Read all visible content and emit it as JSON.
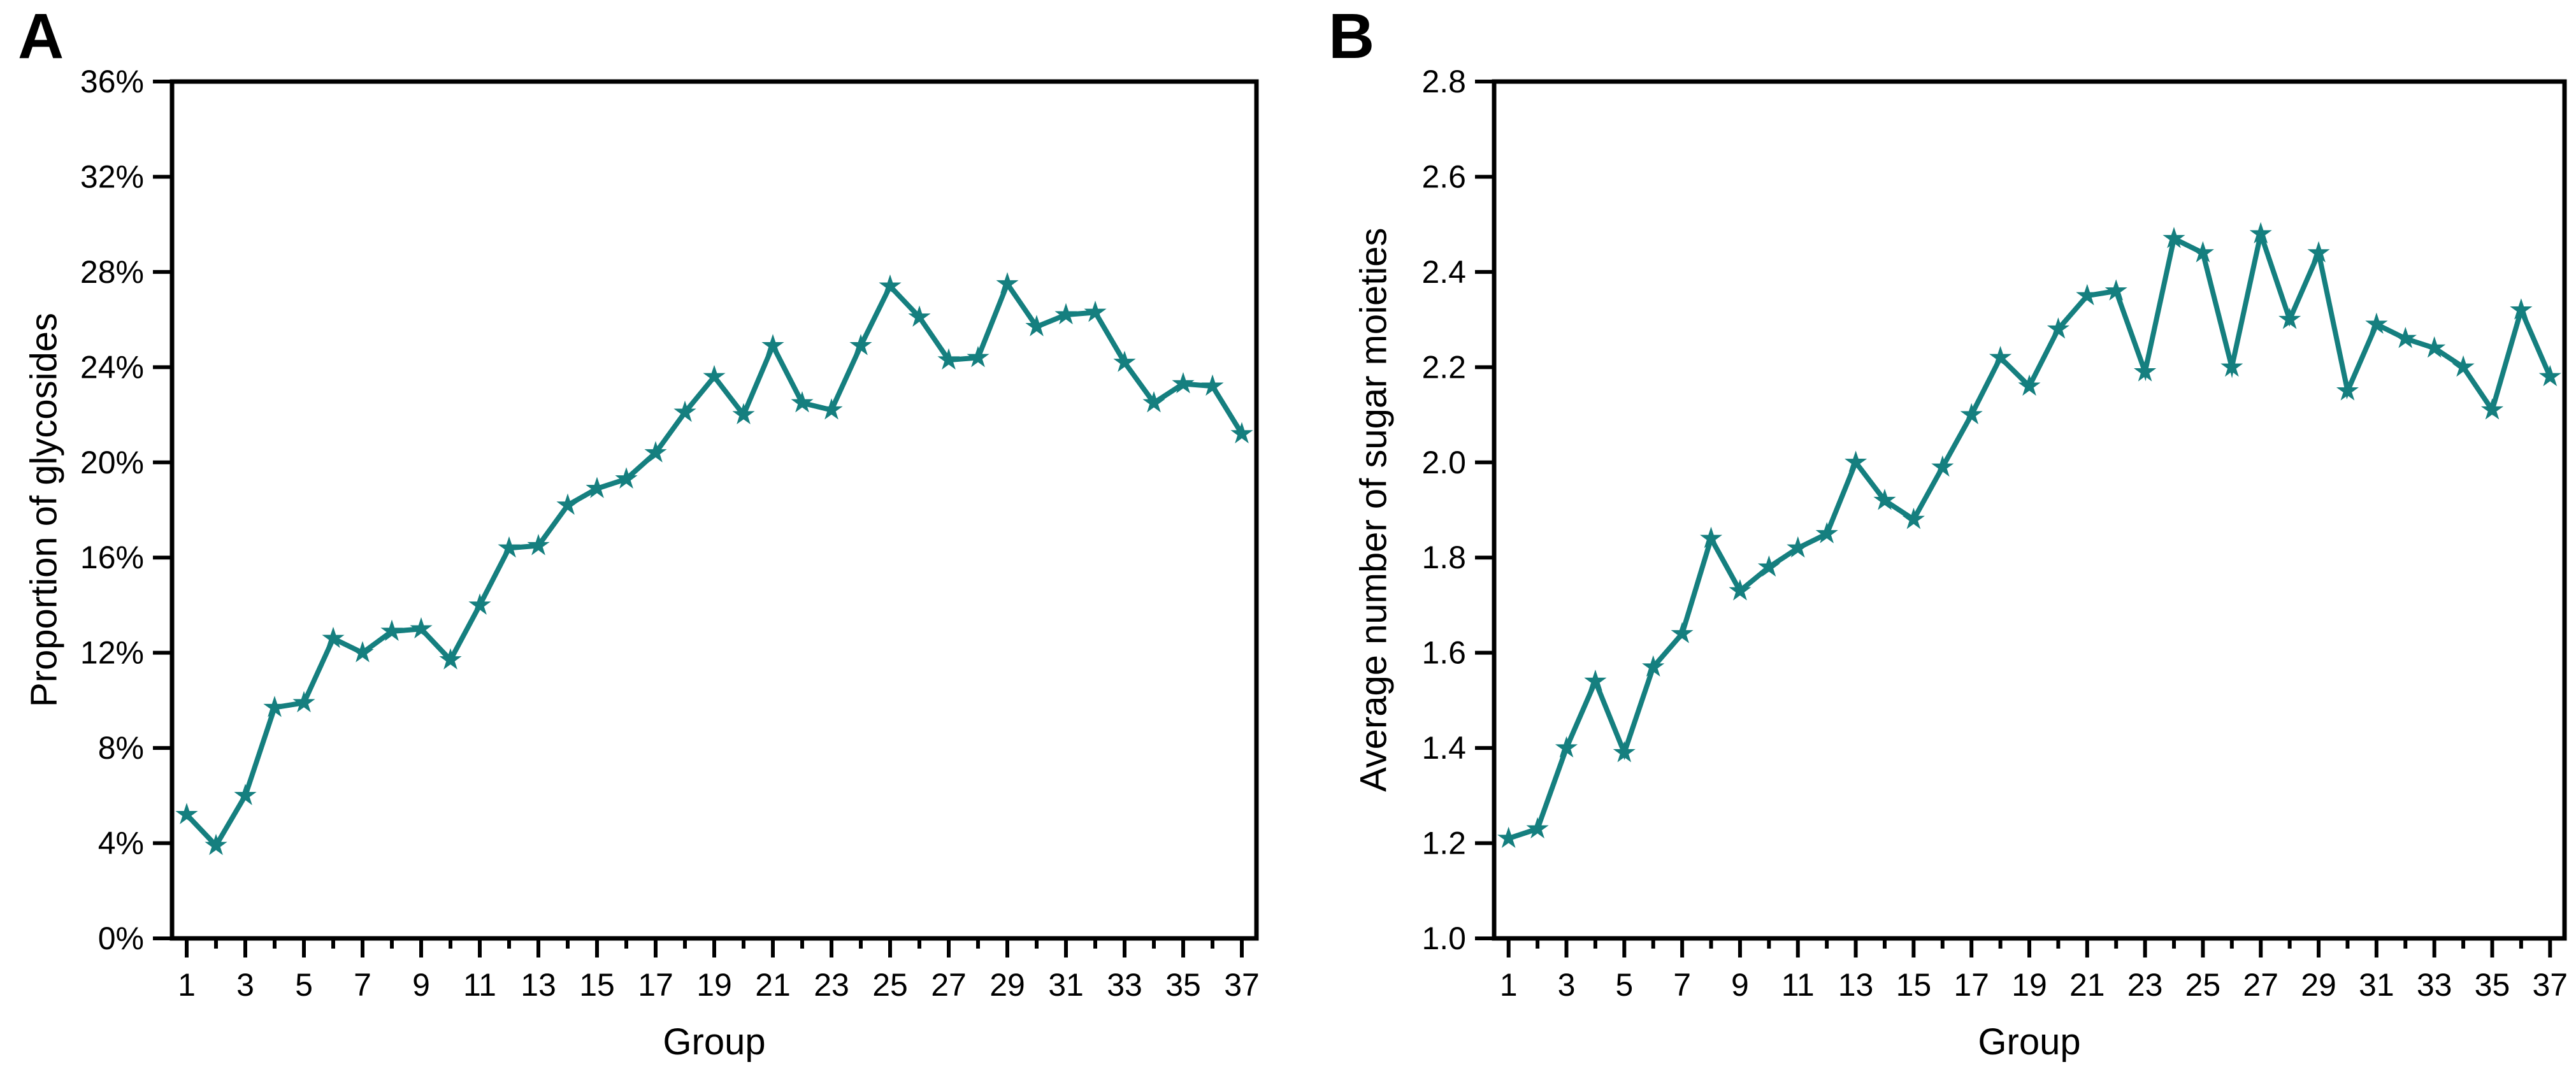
{
  "figure": {
    "background": "#ffffff",
    "axis_color": "#000000"
  },
  "chart_data": [
    {
      "type": "line",
      "panel_label": "A",
      "title": "",
      "xlabel": "Group",
      "ylabel": "Proportion of glycosides",
      "series_color": "#157f7f",
      "marker": "star",
      "grid": false,
      "legend": "none",
      "xlim": [
        0.5,
        37.5
      ],
      "ylim": [
        0,
        36
      ],
      "y_ticks": [
        0,
        4,
        8,
        12,
        16,
        20,
        24,
        28,
        32,
        36
      ],
      "y_tick_labels": [
        "0%",
        "4%",
        "8%",
        "12%",
        "16%",
        "20%",
        "24%",
        "28%",
        "32%",
        "36%"
      ],
      "x_major_ticks": [
        1,
        3,
        5,
        7,
        9,
        11,
        13,
        15,
        17,
        19,
        21,
        23,
        25,
        27,
        29,
        31,
        33,
        35,
        37
      ],
      "x_tick_labels": [
        "1",
        "3",
        "5",
        "7",
        "9",
        "11",
        "13",
        "15",
        "17",
        "19",
        "21",
        "23",
        "25",
        "27",
        "29",
        "31",
        "33",
        "35",
        "37"
      ],
      "x_minor_ticks": [
        2,
        4,
        6,
        8,
        10,
        12,
        14,
        16,
        18,
        20,
        22,
        24,
        26,
        28,
        30,
        32,
        34,
        36
      ],
      "x": [
        1,
        2,
        3,
        4,
        5,
        6,
        7,
        8,
        9,
        10,
        11,
        12,
        13,
        14,
        15,
        16,
        17,
        18,
        19,
        20,
        21,
        22,
        23,
        24,
        25,
        26,
        27,
        28,
        29,
        30,
        31,
        32,
        33,
        34,
        35,
        36,
        37
      ],
      "values": [
        5.2,
        3.9,
        6.0,
        9.7,
        9.9,
        12.6,
        12.0,
        12.9,
        13.0,
        11.7,
        14.0,
        16.4,
        16.5,
        18.2,
        18.9,
        19.3,
        20.4,
        22.1,
        23.6,
        22.0,
        24.9,
        22.5,
        22.2,
        24.9,
        27.4,
        26.1,
        24.3,
        24.4,
        27.5,
        25.7,
        26.2,
        26.3,
        24.2,
        22.5,
        23.3,
        23.2,
        21.2
      ]
    },
    {
      "type": "line",
      "panel_label": "B",
      "title": "",
      "xlabel": "Group",
      "ylabel": "Average number of sugar moieties",
      "series_color": "#157f7f",
      "marker": "star",
      "grid": false,
      "legend": "none",
      "xlim": [
        0.5,
        37.5
      ],
      "ylim": [
        1.0,
        2.8
      ],
      "y_ticks": [
        1.0,
        1.2,
        1.4,
        1.6,
        1.8,
        2.0,
        2.2,
        2.4,
        2.6,
        2.8
      ],
      "y_tick_labels": [
        "1.0",
        "1.2",
        "1.4",
        "1.6",
        "1.8",
        "2.0",
        "2.2",
        "2.4",
        "2.6",
        "2.8"
      ],
      "x_major_ticks": [
        1,
        3,
        5,
        7,
        9,
        11,
        13,
        15,
        17,
        19,
        21,
        23,
        25,
        27,
        29,
        31,
        33,
        35,
        37
      ],
      "x_tick_labels": [
        "1",
        "3",
        "5",
        "7",
        "9",
        "11",
        "13",
        "15",
        "17",
        "19",
        "21",
        "23",
        "25",
        "27",
        "29",
        "31",
        "33",
        "35",
        "37"
      ],
      "x_minor_ticks": [
        2,
        4,
        6,
        8,
        10,
        12,
        14,
        16,
        18,
        20,
        22,
        24,
        26,
        28,
        30,
        32,
        34,
        36
      ],
      "x": [
        1,
        2,
        3,
        4,
        5,
        6,
        7,
        8,
        9,
        10,
        11,
        12,
        13,
        14,
        15,
        16,
        17,
        18,
        19,
        20,
        21,
        22,
        23,
        24,
        25,
        26,
        27,
        28,
        29,
        30,
        31,
        32,
        33,
        34,
        35,
        36,
        37
      ],
      "values": [
        1.21,
        1.23,
        1.4,
        1.54,
        1.39,
        1.57,
        1.64,
        1.84,
        1.73,
        1.78,
        1.82,
        1.85,
        2.0,
        1.92,
        1.88,
        1.99,
        2.1,
        2.22,
        2.16,
        2.28,
        2.35,
        2.36,
        2.19,
        2.47,
        2.44,
        2.2,
        2.48,
        2.3,
        2.44,
        2.15,
        2.29,
        2.26,
        2.24,
        2.2,
        2.11,
        2.32,
        2.18
      ]
    }
  ]
}
